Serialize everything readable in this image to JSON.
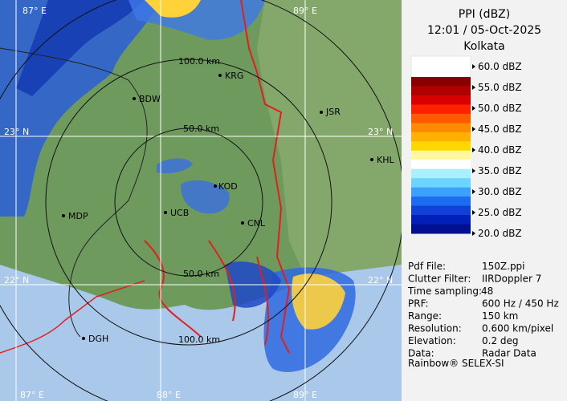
{
  "header": {
    "lines": [
      "PPI (dBZ)",
      "12:01 / 05-Oct-2025",
      "Kolkata"
    ]
  },
  "legend": {
    "labels": [
      "60.0 dBZ",
      "55.0 dBZ",
      "50.0 dBZ",
      "45.0 dBZ",
      "40.0 dBZ",
      "35.0 dBZ",
      "30.0 dBZ",
      "25.0 dBZ",
      "20.0 dBZ"
    ]
  },
  "info": {
    "rows": [
      [
        "Pdf File:",
        "150Z.ppi"
      ],
      [
        "Clutter Filter:",
        "IIRDoppler 7"
      ],
      [
        "Time sampling:",
        "48"
      ],
      [
        "PRF:",
        "600 Hz / 450 Hz"
      ],
      [
        "Range:",
        "150 km"
      ],
      [
        "Resolution:",
        "0.600 km/pixel"
      ],
      [
        "Elevation:",
        "0.2 deg"
      ],
      [
        "Data:",
        "Radar Data"
      ]
    ],
    "footer": "Rainbow® SELEX-SI"
  },
  "map": {
    "grid_labels": [
      "87° E",
      "89° E",
      "23° N",
      "23° N",
      "22° N",
      "22° N",
      "87° E",
      "88° E",
      "89° E"
    ],
    "ring_labels": [
      "100.0 km",
      "50.0 km",
      "50.0 km",
      "100.0 km"
    ],
    "cities": [
      "KRG",
      "BDW",
      "JSR",
      "KHL",
      "MDP",
      "UCB",
      "KOD",
      "CNL",
      "DGH"
    ]
  }
}
